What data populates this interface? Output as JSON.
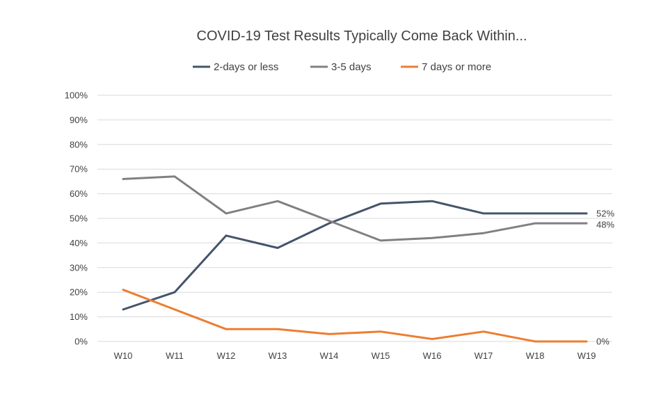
{
  "chart_data": {
    "type": "line",
    "title": "COVID-19 Test Results Typically Come Back Within...",
    "xlabel": "",
    "ylabel": "",
    "categories": [
      "W10",
      "W11",
      "W12",
      "W13",
      "W14",
      "W15",
      "W16",
      "W17",
      "W18",
      "W19"
    ],
    "y_ticks": [
      "0%",
      "10%",
      "20%",
      "30%",
      "40%",
      "50%",
      "60%",
      "70%",
      "80%",
      "90%",
      "100%"
    ],
    "ylim": [
      0,
      100
    ],
    "grid": true,
    "legend_position": "top",
    "series": [
      {
        "name": "2-days or less",
        "color": "#44546a",
        "values": [
          13,
          20,
          43,
          38,
          48,
          56,
          57,
          52,
          52,
          52
        ],
        "end_label": "52%"
      },
      {
        "name": "3-5 days",
        "color": "#808080",
        "values": [
          66,
          67,
          52,
          57,
          49,
          41,
          42,
          44,
          48,
          48
        ],
        "end_label": "48%"
      },
      {
        "name": "7 days or more",
        "color": "#ed7d31",
        "values": [
          21,
          13,
          5,
          5,
          3,
          4,
          1,
          4,
          0,
          0
        ],
        "end_label": "0%"
      }
    ]
  }
}
